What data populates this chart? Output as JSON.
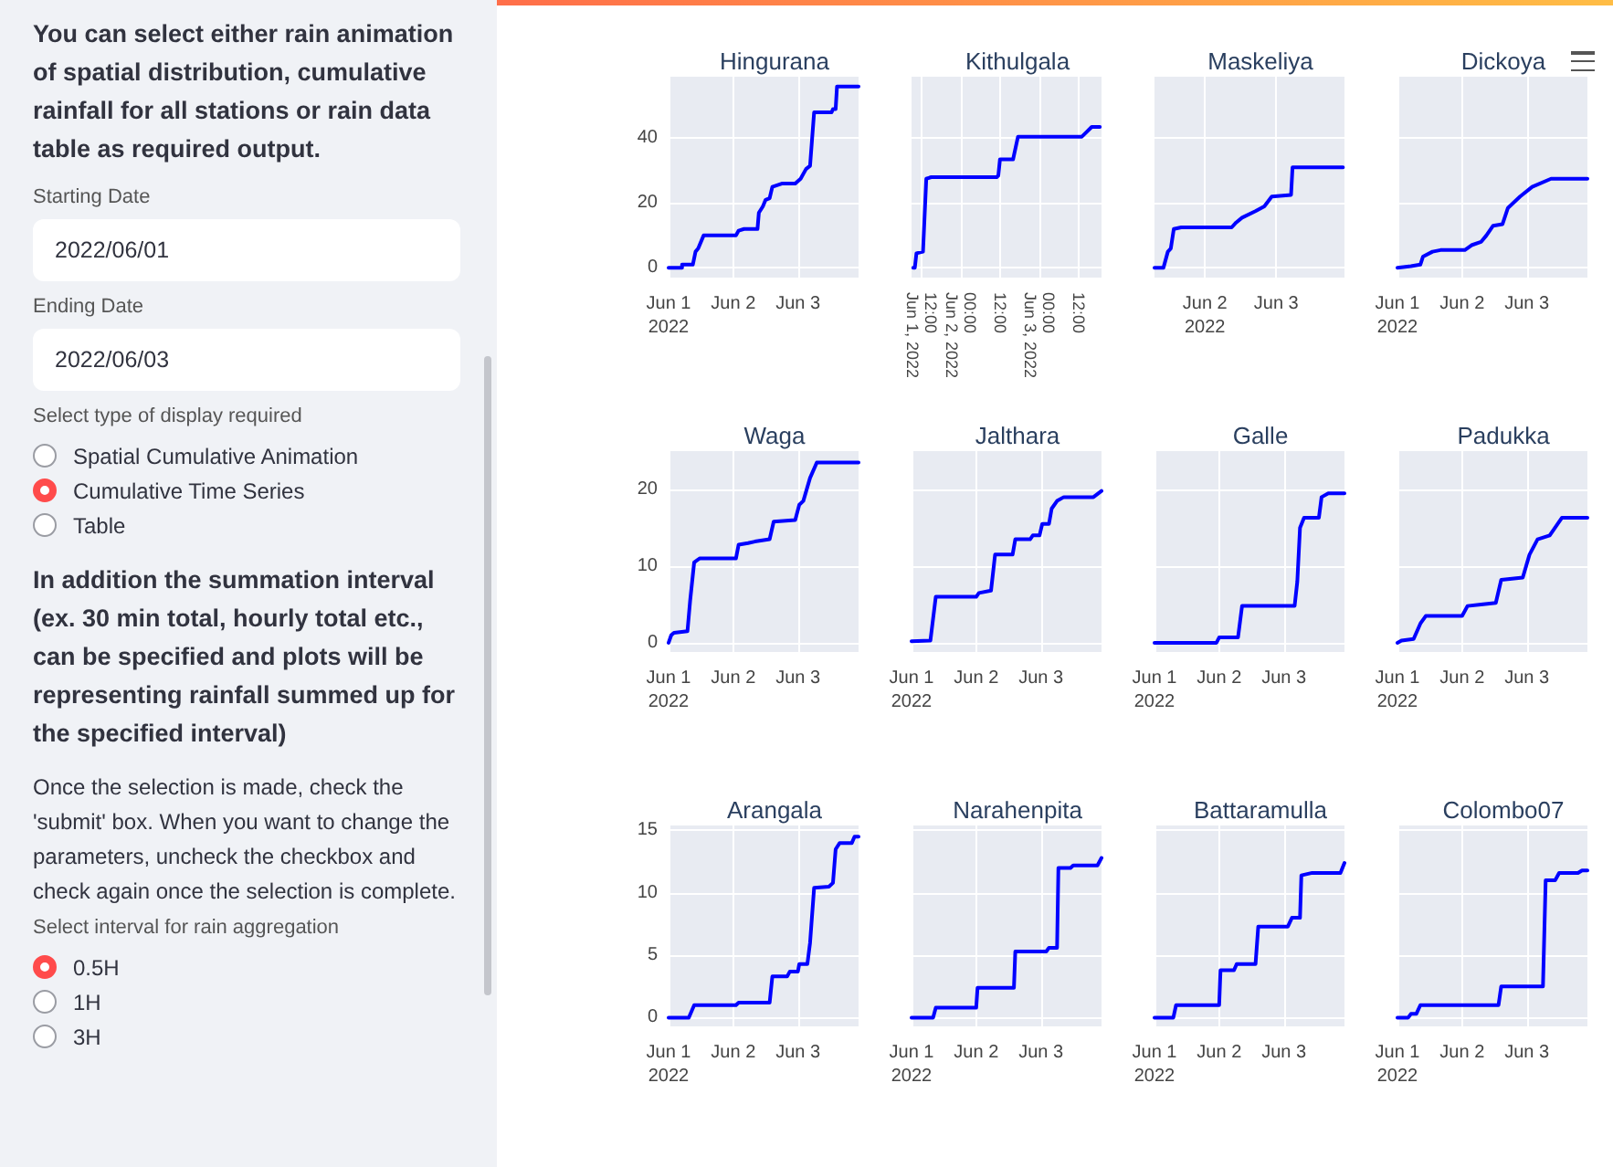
{
  "chart_data": [
    {
      "type": "other",
      "annotations": [
        "You can select either rain animation of spatial distribution, cumulative rainfall for all stations or rain data table as required output.",
        "Starting Date",
        "2022/06/01",
        "Ending Date",
        "2022/06/03",
        "Select type of display required",
        "Spatial Cumulative Animation",
        "Cumulative Time Series",
        "Table",
        "In addition the summation interval (ex. 30 min total, hourly total etc., can be specified and plots will be representing rainfall summed up for the specified interval)",
        "Once the selection is made, check the 'submit' box. When you want to change the parameters, uncheck the checkbox and check again once the selection is complete.",
        "Select interval for rain aggregation",
        "0.5H",
        "1H",
        "3H"
      ]
    },
    {
      "type": "line",
      "title": "Hingurana",
      "grid": true,
      "x": [
        "2022-06-01T00:00",
        "2022-06-01T05:00",
        "2022-06-01T05:00",
        "2022-06-01T09:00",
        "2022-06-01T10:00",
        "2022-06-01T11:00",
        "2022-06-01T13:00",
        "2022-06-02T01:00",
        "2022-06-02T02:00",
        "2022-06-02T04:00",
        "2022-06-02T09:00",
        "2022-06-02T09:30",
        "2022-06-02T11:00",
        "2022-06-02T12:00",
        "2022-06-02T13:30",
        "2022-06-02T14:30",
        "2022-06-02T18:00",
        "2022-06-02T23:00",
        "2022-06-03T01:00",
        "2022-06-03T03:00",
        "2022-06-03T04:30",
        "2022-06-03T06:00",
        "2022-06-03T12:30",
        "2022-06-03T13:00",
        "2022-06-03T14:00",
        "2022-06-03T14:30",
        "2022-06-03T22:30"
      ],
      "series": [
        {
          "color": "#0000ff",
          "values": [
            0,
            0,
            1,
            1,
            5,
            6,
            10,
            10,
            11.5,
            12,
            12,
            17,
            19,
            21,
            21.5,
            25,
            26,
            26,
            27.5,
            30.5,
            31.5,
            48,
            48,
            49,
            49,
            56,
            56
          ]
        }
      ],
      "xlim": [
        "2022-06-01T00:00",
        "2022-06-03T22:30"
      ],
      "xticks": [
        {
          "value": "2022-06-01T00:00",
          "label": "Jun 1\n2022"
        },
        {
          "value": "2022-06-02T00:00",
          "label": "Jun 2"
        },
        {
          "value": "2022-06-03T00:00",
          "label": "Jun 3"
        }
      ],
      "ylim": [
        -3,
        59
      ],
      "yticks": [
        0,
        20,
        40
      ]
    },
    {
      "type": "line",
      "title": "Kithulgala",
      "grid": true,
      "tick_labels": "x",
      "x": [
        "2022-06-01T09:30",
        "2022-06-01T10:00",
        "2022-06-01T10:30",
        "2022-06-01T12:30",
        "2022-06-01T13:30",
        "2022-06-01T15:00",
        "2022-06-02T11:00",
        "2022-06-02T11:30",
        "2022-06-02T12:00",
        "2022-06-02T16:00",
        "2022-06-02T17:30",
        "2022-06-03T13:00",
        "2022-06-03T14:30",
        "2022-06-03T16:00",
        "2022-06-03T18:30"
      ],
      "series": [
        {
          "color": "#0000ff",
          "values": [
            0,
            0,
            4.5,
            5,
            27.5,
            28,
            28,
            28.5,
            33.5,
            33.5,
            40.5,
            40.5,
            42,
            43.5,
            43.5
          ]
        }
      ],
      "xlim": [
        "2022-06-01T09:00",
        "2022-06-03T19:00"
      ],
      "xticks": [
        {
          "value": "2022-06-01T12:00",
          "label": "12:00\nJun 1, 2022"
        },
        {
          "value": "2022-06-02T00:00",
          "label": "00:00\nJun 2, 2022"
        },
        {
          "value": "2022-06-02T12:00",
          "label": "12:00"
        },
        {
          "value": "2022-06-03T00:00",
          "label": "00:00\nJun 3, 2022"
        },
        {
          "value": "2022-06-03T12:00",
          "label": "12:00"
        }
      ],
      "ylim": [
        -3,
        59
      ],
      "yticks": [
        0,
        20,
        40
      ]
    },
    {
      "type": "line",
      "title": "Maskeliya",
      "grid": true,
      "tick_labels": "x",
      "x": [
        "2022-06-01T07:00",
        "2022-06-01T10:00",
        "2022-06-01T11:30",
        "2022-06-01T12:30",
        "2022-06-01T13:30",
        "2022-06-01T16:00",
        "2022-06-02T09:00",
        "2022-06-02T10:30",
        "2022-06-02T12:30",
        "2022-06-02T17:00",
        "2022-06-02T20:00",
        "2022-06-02T22:30",
        "2022-06-03T05:00",
        "2022-06-03T05:30",
        "2022-06-03T22:30"
      ],
      "series": [
        {
          "color": "#0000ff",
          "values": [
            0,
            0,
            5,
            6,
            12,
            12.5,
            12.5,
            14,
            15.5,
            17.5,
            19,
            22,
            22.5,
            31,
            31
          ]
        }
      ],
      "xlim": [
        "2022-06-01T07:00",
        "2022-06-03T23:00"
      ],
      "xticks": [
        {
          "value": "2022-06-02T00:00",
          "label": "Jun 2\n2022"
        },
        {
          "value": "2022-06-03T00:00",
          "label": "Jun 3"
        }
      ],
      "ylim": [
        -3,
        59
      ],
      "yticks": [
        0,
        20,
        40
      ]
    },
    {
      "type": "line",
      "title": "Dickoya",
      "grid": true,
      "tick_labels": "x",
      "x": [
        "2022-06-01T00:00",
        "2022-06-01T05:00",
        "2022-06-01T08:30",
        "2022-06-01T09:30",
        "2022-06-01T13:00",
        "2022-06-01T16:00",
        "2022-06-02T01:00",
        "2022-06-02T03:30",
        "2022-06-02T07:00",
        "2022-06-02T09:00",
        "2022-06-02T11:30",
        "2022-06-02T15:00",
        "2022-06-02T17:00",
        "2022-06-02T21:30",
        "2022-06-03T02:00",
        "2022-06-03T09:00",
        "2022-06-03T22:30"
      ],
      "series": [
        {
          "color": "#0000ff",
          "values": [
            0,
            0.5,
            1,
            3.5,
            5,
            5.5,
            5.5,
            7,
            8,
            10,
            13,
            13.5,
            18.5,
            22,
            25,
            27.5,
            27.5
          ]
        }
      ],
      "xlim": [
        "2022-06-01T00:00",
        "2022-06-03T22:30"
      ],
      "xticks": [
        {
          "value": "2022-06-01T00:00",
          "label": "Jun 1\n2022"
        },
        {
          "value": "2022-06-02T00:00",
          "label": "Jun 2"
        },
        {
          "value": "2022-06-03T00:00",
          "label": "Jun 3"
        }
      ],
      "ylim": [
        -3,
        59
      ],
      "yticks": [
        0,
        20,
        40
      ]
    },
    {
      "type": "line",
      "title": "Waga",
      "grid": true,
      "x": [
        "2022-06-01T00:00",
        "2022-06-01T01:00",
        "2022-06-01T02:00",
        "2022-06-01T07:00",
        "2022-06-01T08:00",
        "2022-06-01T09:30",
        "2022-06-01T11:30",
        "2022-06-02T01:00",
        "2022-06-02T02:00",
        "2022-06-02T05:30",
        "2022-06-02T08:00",
        "2022-06-02T13:30",
        "2022-06-02T15:00",
        "2022-06-02T23:00",
        "2022-06-03T00:30",
        "2022-06-03T02:00",
        "2022-06-03T04:30",
        "2022-06-03T07:00",
        "2022-06-03T22:30"
      ],
      "series": [
        {
          "color": "#0000ff",
          "values": [
            0,
            1,
            1.3,
            1.5,
            5.5,
            10.5,
            11,
            11,
            12.8,
            13,
            13.2,
            13.5,
            15.8,
            16,
            18,
            18.5,
            21.5,
            23.5,
            23.5
          ]
        }
      ],
      "xlim": [
        "2022-06-01T00:00",
        "2022-06-03T22:30"
      ],
      "xticks": [
        {
          "value": "2022-06-01T00:00",
          "label": "Jun 1\n2022"
        },
        {
          "value": "2022-06-02T00:00",
          "label": "Jun 2"
        },
        {
          "value": "2022-06-03T00:00",
          "label": "Jun 3"
        }
      ],
      "ylim": [
        -1.2,
        25
      ],
      "yticks": [
        0,
        10,
        20
      ]
    },
    {
      "type": "line",
      "title": "Jalthara",
      "grid": true,
      "tick_labels": "x",
      "x": [
        "2022-06-01T00:00",
        "2022-06-01T07:00",
        "2022-06-01T09:00",
        "2022-06-02T00:00",
        "2022-06-02T01:00",
        "2022-06-02T05:30",
        "2022-06-02T07:00",
        "2022-06-02T13:30",
        "2022-06-02T14:30",
        "2022-06-02T20:00",
        "2022-06-02T21:00",
        "2022-06-02T23:30",
        "2022-06-03T00:30",
        "2022-06-03T03:00",
        "2022-06-03T04:00",
        "2022-06-03T06:00",
        "2022-06-03T08:30",
        "2022-06-03T19:30",
        "2022-06-03T22:30"
      ],
      "series": [
        {
          "color": "#0000ff",
          "values": [
            0.2,
            0.3,
            6,
            6,
            6.5,
            6.8,
            11.5,
            11.5,
            13.5,
            13.5,
            14,
            14,
            15.5,
            15.5,
            17.5,
            18.5,
            19,
            19,
            19.8
          ]
        }
      ],
      "xlim": [
        "2022-06-01T00:00",
        "2022-06-03T22:30"
      ],
      "xticks": [
        {
          "value": "2022-06-01T00:00",
          "label": "Jun 1\n2022"
        },
        {
          "value": "2022-06-02T00:00",
          "label": "Jun 2"
        },
        {
          "value": "2022-06-03T00:00",
          "label": "Jun 3"
        }
      ],
      "ylim": [
        -1.2,
        25
      ],
      "yticks": [
        0,
        10,
        20
      ]
    },
    {
      "type": "line",
      "title": "Galle",
      "grid": true,
      "tick_labels": "x",
      "x": [
        "2022-06-01T00:00",
        "2022-06-01T23:00",
        "2022-06-02T00:00",
        "2022-06-02T07:00",
        "2022-06-02T08:30",
        "2022-06-03T04:00",
        "2022-06-03T05:00",
        "2022-06-03T06:00",
        "2022-06-03T07:30",
        "2022-06-03T13:00",
        "2022-06-03T14:00",
        "2022-06-03T16:30",
        "2022-06-03T22:30"
      ],
      "series": [
        {
          "color": "#0000ff",
          "values": [
            0,
            0,
            0.7,
            0.7,
            4.8,
            4.8,
            8,
            15,
            16.3,
            16.3,
            19,
            19.5,
            19.5
          ]
        }
      ],
      "xlim": [
        "2022-06-01T00:00",
        "2022-06-03T22:30"
      ],
      "xticks": [
        {
          "value": "2022-06-01T00:00",
          "label": "Jun 1\n2022"
        },
        {
          "value": "2022-06-02T00:00",
          "label": "Jun 2"
        },
        {
          "value": "2022-06-03T00:00",
          "label": "Jun 3"
        }
      ],
      "ylim": [
        -1.2,
        25
      ],
      "yticks": [
        0,
        10,
        20
      ]
    },
    {
      "type": "line",
      "title": "Padukka",
      "grid": true,
      "tick_labels": "x",
      "x": [
        "2022-06-01T00:00",
        "2022-06-01T01:30",
        "2022-06-01T06:00",
        "2022-06-01T08:30",
        "2022-06-01T10:30",
        "2022-06-02T00:00",
        "2022-06-02T02:00",
        "2022-06-02T07:00",
        "2022-06-02T12:30",
        "2022-06-02T14:30",
        "2022-06-02T22:30",
        "2022-06-03T01:00",
        "2022-06-03T04:00",
        "2022-06-03T08:30",
        "2022-06-03T13:00",
        "2022-06-03T22:30"
      ],
      "series": [
        {
          "color": "#0000ff",
          "values": [
            0,
            0.3,
            0.5,
            2.5,
            3.5,
            3.5,
            4.8,
            5,
            5.2,
            8.2,
            8.5,
            11.5,
            13.5,
            14,
            16.3,
            16.3
          ]
        }
      ],
      "xlim": [
        "2022-06-01T00:00",
        "2022-06-03T22:30"
      ],
      "xticks": [
        {
          "value": "2022-06-01T00:00",
          "label": "Jun 1\n2022"
        },
        {
          "value": "2022-06-02T00:00",
          "label": "Jun 2"
        },
        {
          "value": "2022-06-03T00:00",
          "label": "Jun 3"
        }
      ],
      "ylim": [
        -1.2,
        25
      ],
      "yticks": [
        0,
        10,
        20
      ]
    },
    {
      "type": "line",
      "title": "Arangala",
      "grid": true,
      "x": [
        "2022-06-01T00:00",
        "2022-06-01T07:30",
        "2022-06-01T09:30",
        "2022-06-02T01:00",
        "2022-06-02T02:00",
        "2022-06-02T13:30",
        "2022-06-02T14:30",
        "2022-06-02T20:00",
        "2022-06-02T21:00",
        "2022-06-03T00:00",
        "2022-06-03T00:30",
        "2022-06-03T03:30",
        "2022-06-03T04:30",
        "2022-06-03T06:00",
        "2022-06-03T11:30",
        "2022-06-03T13:00",
        "2022-06-03T14:00",
        "2022-06-03T15:30",
        "2022-06-03T20:00",
        "2022-06-03T21:00",
        "2022-06-03T22:30"
      ],
      "series": [
        {
          "color": "#0000ff",
          "values": [
            0,
            0,
            1,
            1,
            1.2,
            1.2,
            3.3,
            3.3,
            3.7,
            3.7,
            4.3,
            4.3,
            6,
            10.4,
            10.5,
            10.8,
            13.5,
            14,
            14,
            14.5,
            14.5
          ]
        }
      ],
      "xlim": [
        "2022-06-01T00:00",
        "2022-06-03T22:30"
      ],
      "xticks": [
        {
          "value": "2022-06-01T00:00",
          "label": "Jun 1\n2022"
        },
        {
          "value": "2022-06-02T00:00",
          "label": "Jun 2"
        },
        {
          "value": "2022-06-03T00:00",
          "label": "Jun 3"
        }
      ],
      "ylim": [
        -0.7,
        15.4
      ],
      "yticks": [
        0,
        5,
        10,
        15
      ]
    },
    {
      "type": "line",
      "title": "Narahenpita",
      "grid": true,
      "tick_labels": "x",
      "x": [
        "2022-06-01T00:00",
        "2022-06-01T08:00",
        "2022-06-01T09:00",
        "2022-06-02T00:00",
        "2022-06-02T00:30",
        "2022-06-02T14:00",
        "2022-06-02T14:30",
        "2022-06-03T02:00",
        "2022-06-03T03:00",
        "2022-06-03T06:00",
        "2022-06-03T06:30",
        "2022-06-03T11:00",
        "2022-06-03T12:00",
        "2022-06-03T21:00",
        "2022-06-03T22:30"
      ],
      "series": [
        {
          "color": "#0000ff",
          "values": [
            0,
            0,
            0.8,
            0.8,
            2.4,
            2.4,
            5.3,
            5.3,
            5.6,
            5.6,
            12,
            12,
            12.2,
            12.2,
            12.8
          ]
        }
      ],
      "xlim": [
        "2022-06-01T00:00",
        "2022-06-03T22:30"
      ],
      "xticks": [
        {
          "value": "2022-06-01T00:00",
          "label": "Jun 1\n2022"
        },
        {
          "value": "2022-06-02T00:00",
          "label": "Jun 2"
        },
        {
          "value": "2022-06-03T00:00",
          "label": "Jun 3"
        }
      ],
      "ylim": [
        -0.7,
        15.4
      ],
      "yticks": [
        0,
        5,
        10,
        15
      ]
    },
    {
      "type": "line",
      "title": "Battaramulla",
      "grid": true,
      "tick_labels": "x",
      "x": [
        "2022-06-01T00:00",
        "2022-06-01T07:00",
        "2022-06-01T08:00",
        "2022-06-02T00:00",
        "2022-06-02T00:30",
        "2022-06-02T05:30",
        "2022-06-02T06:30",
        "2022-06-02T13:30",
        "2022-06-02T14:30",
        "2022-06-03T01:30",
        "2022-06-03T03:00",
        "2022-06-03T06:00",
        "2022-06-03T06:30",
        "2022-06-03T10:30",
        "2022-06-03T21:00",
        "2022-06-03T22:30"
      ],
      "series": [
        {
          "color": "#0000ff",
          "values": [
            0,
            0,
            1,
            1,
            3.8,
            3.8,
            4.3,
            4.3,
            7.3,
            7.3,
            8,
            8,
            11.4,
            11.6,
            11.6,
            12.4
          ]
        }
      ],
      "xlim": [
        "2022-06-01T00:00",
        "2022-06-03T22:30"
      ],
      "xticks": [
        {
          "value": "2022-06-01T00:00",
          "label": "Jun 1\n2022"
        },
        {
          "value": "2022-06-02T00:00",
          "label": "Jun 2"
        },
        {
          "value": "2022-06-03T00:00",
          "label": "Jun 3"
        }
      ],
      "ylim": [
        -0.7,
        15.4
      ],
      "yticks": [
        0,
        5,
        10,
        15
      ]
    },
    {
      "type": "line",
      "title": "Colombo07",
      "grid": true,
      "tick_labels": "x",
      "x": [
        "2022-06-01T00:00",
        "2022-06-01T04:00",
        "2022-06-01T05:00",
        "2022-06-01T07:00",
        "2022-06-01T08:30",
        "2022-06-02T13:30",
        "2022-06-02T14:30",
        "2022-06-03T06:00",
        "2022-06-03T07:00",
        "2022-06-03T10:30",
        "2022-06-03T12:00",
        "2022-06-03T19:00",
        "2022-06-03T20:30",
        "2022-06-03T22:30"
      ],
      "series": [
        {
          "color": "#0000ff",
          "values": [
            0,
            0,
            0.3,
            0.3,
            1,
            1,
            2.5,
            2.5,
            11,
            11,
            11.6,
            11.6,
            11.8,
            11.8
          ]
        }
      ],
      "xlim": [
        "2022-06-01T00:00",
        "2022-06-03T22:30"
      ],
      "xticks": [
        {
          "value": "2022-06-01T00:00",
          "label": "Jun 1\n2022"
        },
        {
          "value": "2022-06-02T00:00",
          "label": "Jun 2"
        },
        {
          "value": "2022-06-03T00:00",
          "label": "Jun 3"
        }
      ],
      "ylim": [
        -0.7,
        15.4
      ],
      "yticks": [
        0,
        5,
        10,
        15
      ]
    }
  ]
}
